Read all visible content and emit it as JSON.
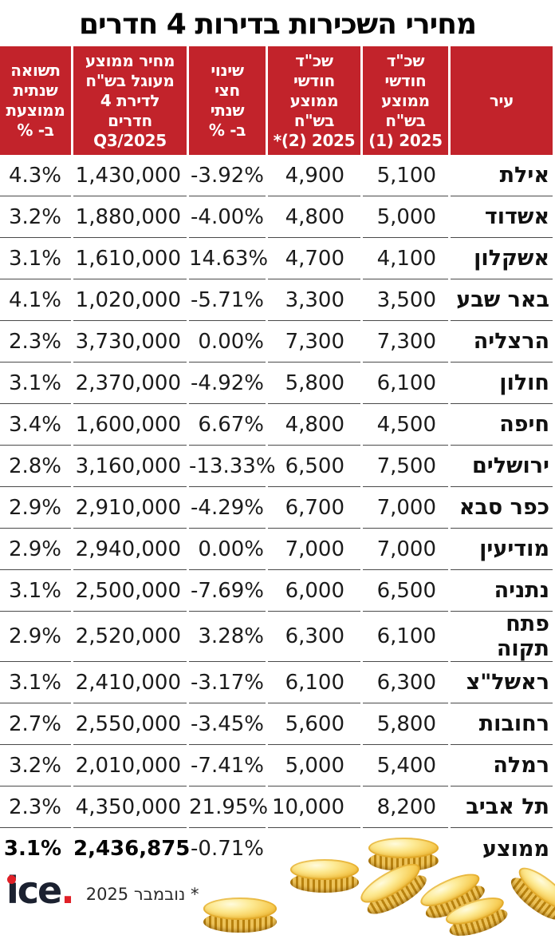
{
  "title": "מחירי השכירות בדירות 4 חדרים",
  "chart_data": {
    "type": "table",
    "title": "מחירי השכירות בדירות 4 חדרים",
    "headers": {
      "city": "עיר",
      "rent1": "שכ\"ד\nחודשי\nממוצע\nבש\"ח\n⁦(1) 2025⁩",
      "rent2": "שכ\"ד\nחודשי\nממוצע\nבש\"ח\n⁦*(2) 2025⁩",
      "change": "שינוי\nחצי\nשנתי\nב- %",
      "price": "מחיר ממוצע\nמעוגל בש\"ח\nלדירת 4\nחדרים\n⁦Q3/2025⁩",
      "yield": "תשואה\nשנתית\nממוצעת\nב- %"
    },
    "columns_note": "rent1 = average monthly rent NIS 2025 (1), rent2 = average monthly rent NIS 2025 (2)*, change = half-year change %, price = rounded average price NIS for 4-room apartment Q3/2025, yield = average annual yield %",
    "rows": [
      {
        "city": "אילת",
        "rent1": "5,100",
        "rent2": "4,900",
        "change": "-3.92%",
        "price": "1,430,000",
        "yield": "4.3%"
      },
      {
        "city": "אשדוד",
        "rent1": "5,000",
        "rent2": "4,800",
        "change": "-4.00%",
        "price": "1,880,000",
        "yield": "3.2%"
      },
      {
        "city": "אשקלון",
        "rent1": "4,100",
        "rent2": "4,700",
        "change": "14.63%",
        "price": "1,610,000",
        "yield": "3.1%"
      },
      {
        "city": "באר שבע",
        "rent1": "3,500",
        "rent2": "3,300",
        "change": "-5.71%",
        "price": "1,020,000",
        "yield": "4.1%"
      },
      {
        "city": "הרצליה",
        "rent1": "7,300",
        "rent2": "7,300",
        "change": "0.00%",
        "price": "3,730,000",
        "yield": "2.3%"
      },
      {
        "city": "חולון",
        "rent1": "6,100",
        "rent2": "5,800",
        "change": "-4.92%",
        "price": "2,370,000",
        "yield": "3.1%"
      },
      {
        "city": "חיפה",
        "rent1": "4,500",
        "rent2": "4,800",
        "change": "6.67%",
        "price": "1,600,000",
        "yield": "3.4%"
      },
      {
        "city": "ירושלים",
        "rent1": "7,500",
        "rent2": "6,500",
        "change": "-13.33%",
        "price": "3,160,000",
        "yield": "2.8%"
      },
      {
        "city": "כפר סבא",
        "rent1": "7,000",
        "rent2": "6,700",
        "change": "-4.29%",
        "price": "2,910,000",
        "yield": "2.9%"
      },
      {
        "city": "מודיעין",
        "rent1": "7,000",
        "rent2": "7,000",
        "change": "0.00%",
        "price": "2,940,000",
        "yield": "2.9%"
      },
      {
        "city": "נתניה",
        "rent1": "6,500",
        "rent2": "6,000",
        "change": "-7.69%",
        "price": "2,500,000",
        "yield": "3.1%"
      },
      {
        "city": "פתח תקוה",
        "rent1": "6,100",
        "rent2": "6,300",
        "change": "3.28%",
        "price": "2,520,000",
        "yield": "2.9%"
      },
      {
        "city": "ראשל\"צ",
        "rent1": "6,300",
        "rent2": "6,100",
        "change": "-3.17%",
        "price": "2,410,000",
        "yield": "3.1%"
      },
      {
        "city": "רחובות",
        "rent1": "5,800",
        "rent2": "5,600",
        "change": "-3.45%",
        "price": "2,550,000",
        "yield": "2.7%"
      },
      {
        "city": "רמלה",
        "rent1": "5,400",
        "rent2": "5,000",
        "change": "-7.41%",
        "price": "2,010,000",
        "yield": "3.2%"
      },
      {
        "city": "תל אביב",
        "rent1": "8,200",
        "rent2": "10,000",
        "change": "21.95%",
        "price": "4,350,000",
        "yield": "2.3%"
      },
      {
        "city": "ממוצע",
        "rent1": "",
        "rent2": "",
        "change": "-0.71%",
        "price": "2,436,875",
        "yield": "3.1%",
        "is_average": true
      }
    ],
    "footnote": "* נובמבר 2025"
  },
  "footer": {
    "logo_text": "ice",
    "logo_dot": ".",
    "note": "* נובמבר 2025"
  },
  "colors": {
    "header_red": "#c2232b",
    "separator_gray": "#4a4a4a",
    "logo_dark": "#1b2130",
    "logo_red": "#e02027",
    "coin_gold": "#f7ce58"
  }
}
